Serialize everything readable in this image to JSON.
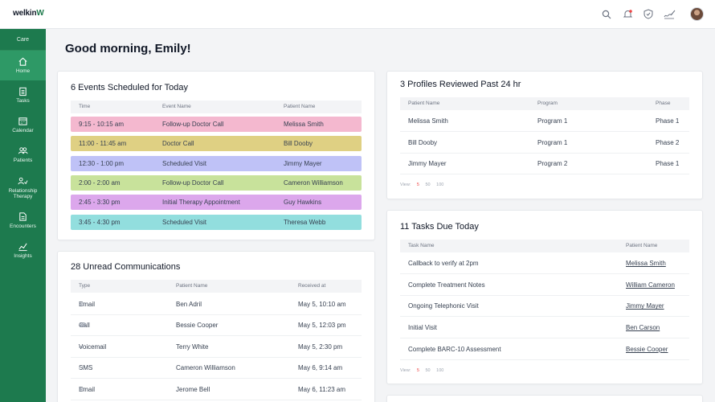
{
  "app": {
    "logo_text": "welkin",
    "logo_mark": "W",
    "accent": "#1d7a4e"
  },
  "topbar": {
    "icons": [
      "search-icon",
      "bell-icon",
      "shield-icon",
      "signature-icon",
      "avatar"
    ]
  },
  "sidebar": {
    "section_label": "Care",
    "items": [
      {
        "label": "Home",
        "icon": "home-icon",
        "active": true
      },
      {
        "label": "Tasks",
        "icon": "clipboard-icon"
      },
      {
        "label": "Calendar",
        "icon": "calendar-icon"
      },
      {
        "label": "Patients",
        "icon": "people-icon"
      },
      {
        "label": "Relationship Therapy",
        "icon": "relationship-icon"
      },
      {
        "label": "Encounters",
        "icon": "document-icon"
      },
      {
        "label": "Insights",
        "icon": "chart-icon"
      }
    ]
  },
  "greeting": "Good morning, Emily!",
  "events": {
    "title": "6 Events Scheduled for Today",
    "headers": [
      "Time",
      "Event Name",
      "Patient Name"
    ],
    "rows": [
      {
        "time": "9:15 - 10:15 am",
        "event": "Follow-up Doctor Call",
        "patient": "Melissa Smith",
        "color": "#f4b8cf"
      },
      {
        "time": "11:00 - 11:45 am",
        "event": "Doctor Call",
        "patient": "Bill Dooby",
        "color": "#dfd083"
      },
      {
        "time": "12:30 - 1:00 pm",
        "event": "Scheduled Visit",
        "patient": "Jimmy Mayer",
        "color": "#bfc2f7"
      },
      {
        "time": "2:00 - 2:00 am",
        "event": "Follow-up Doctor Call",
        "patient": "Cameron Williamson",
        "color": "#c8e29b"
      },
      {
        "time": "2:45 - 3:30 pm",
        "event": "Initial Therapy Appointment",
        "patient": "Guy Hawkins",
        "color": "#dca7ec"
      },
      {
        "time": "3:45 - 4:30 pm",
        "event": "Scheduled Visit",
        "patient": "Theresa Webb",
        "color": "#92dede"
      }
    ]
  },
  "communications": {
    "title": "28 Unread Communications",
    "headers": [
      "Type",
      "Patient Name",
      "Received at"
    ],
    "rows": [
      {
        "type": "Email",
        "icon": "mail-icon",
        "patient": "Ben Adril",
        "received": "May 5, 10:10 am"
      },
      {
        "type": "Call",
        "icon": "phone-icon",
        "patient": "Bessie Cooper",
        "received": "May 5, 12:03 pm"
      },
      {
        "type": "Voicemail",
        "icon": "voicemail-icon",
        "patient": "Terry White",
        "received": "May 5, 2:30 pm"
      },
      {
        "type": "SMS",
        "icon": "sms-icon",
        "patient": "Cameron Williamson",
        "received": "May 6, 9:14 am"
      },
      {
        "type": "Email",
        "icon": "mail-icon",
        "patient": "Jerome Bell",
        "received": "May 6, 11:23 am"
      }
    ]
  },
  "profiles": {
    "title": "3 Profiles Reviewed Past 24 hr",
    "headers": [
      "Patient Name",
      "Program",
      "Phase"
    ],
    "rows": [
      {
        "patient": "Melissa Smith",
        "program": "Program 1",
        "phase": "Phase 1"
      },
      {
        "patient": "Bill Dooby",
        "program": "Program 1",
        "phase": "Phase 2"
      },
      {
        "patient": "Jimmy Mayer",
        "program": "Program 2",
        "phase": "Phase 1"
      }
    ],
    "view_label": "View:",
    "view_options": [
      "5",
      "50",
      "100"
    ]
  },
  "tasks": {
    "title": "11 Tasks Due Today",
    "headers": [
      "Task Name",
      "Patient Name"
    ],
    "rows": [
      {
        "task": "Callback to verify at 2pm",
        "patient": "Melissa Smith"
      },
      {
        "task": "Complete Treatment Notes",
        "patient": "William Cameron"
      },
      {
        "task": "Ongoing Telephonic Visit",
        "patient": "Jimmy Mayer"
      },
      {
        "task": "Initial Visit",
        "patient": "Ben Carson"
      },
      {
        "task": "Complete BARC-10 Assessment",
        "patient": "Bessie Cooper"
      }
    ],
    "view_label": "View:",
    "view_options": [
      "5",
      "50",
      "100"
    ]
  }
}
